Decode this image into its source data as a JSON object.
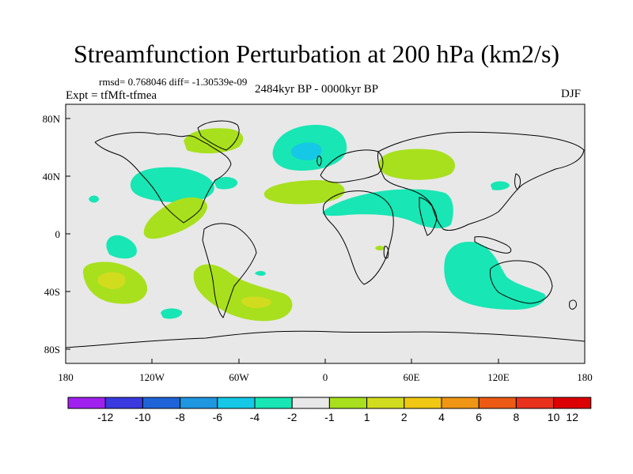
{
  "title": "Streamfunction Perturbation at 200 hPa (km2/s)",
  "stats": "rmsd= 0.768046  diff= -1.30539e-09",
  "experiment": "Expt = tfMft-tfmea",
  "period": "2484kyr BP - 0000kyr BP",
  "season": "DJF",
  "axes": {
    "lon_ticks": [
      "180",
      "120W",
      "60W",
      "0",
      "60E",
      "120E",
      "180"
    ],
    "lat_ticks": [
      "80N",
      "40N",
      "0",
      "40S",
      "80S"
    ]
  },
  "colorbar": {
    "labels": [
      "-12",
      "-10",
      "-8",
      "-6",
      "-4",
      "-2",
      "-1",
      "1",
      "2",
      "4",
      "6",
      "8",
      "10",
      "12"
    ],
    "colors": [
      "#a020f0",
      "#3a3ae0",
      "#1e64d8",
      "#1e96e0",
      "#14c8e6",
      "#18e6b4",
      "#e8e8e8",
      "#a8e01e",
      "#d2dc1e",
      "#f0c814",
      "#f09614",
      "#ec5a14",
      "#e8321c",
      "#dc0000"
    ]
  },
  "colors": {
    "land_ocean_bg": "#e8e8e8",
    "positive_1_2": "#a8e01e",
    "positive_2_4": "#d2dc1e",
    "negative_1_2": "#18e6b4",
    "negative_2_4": "#14c8e6"
  }
}
